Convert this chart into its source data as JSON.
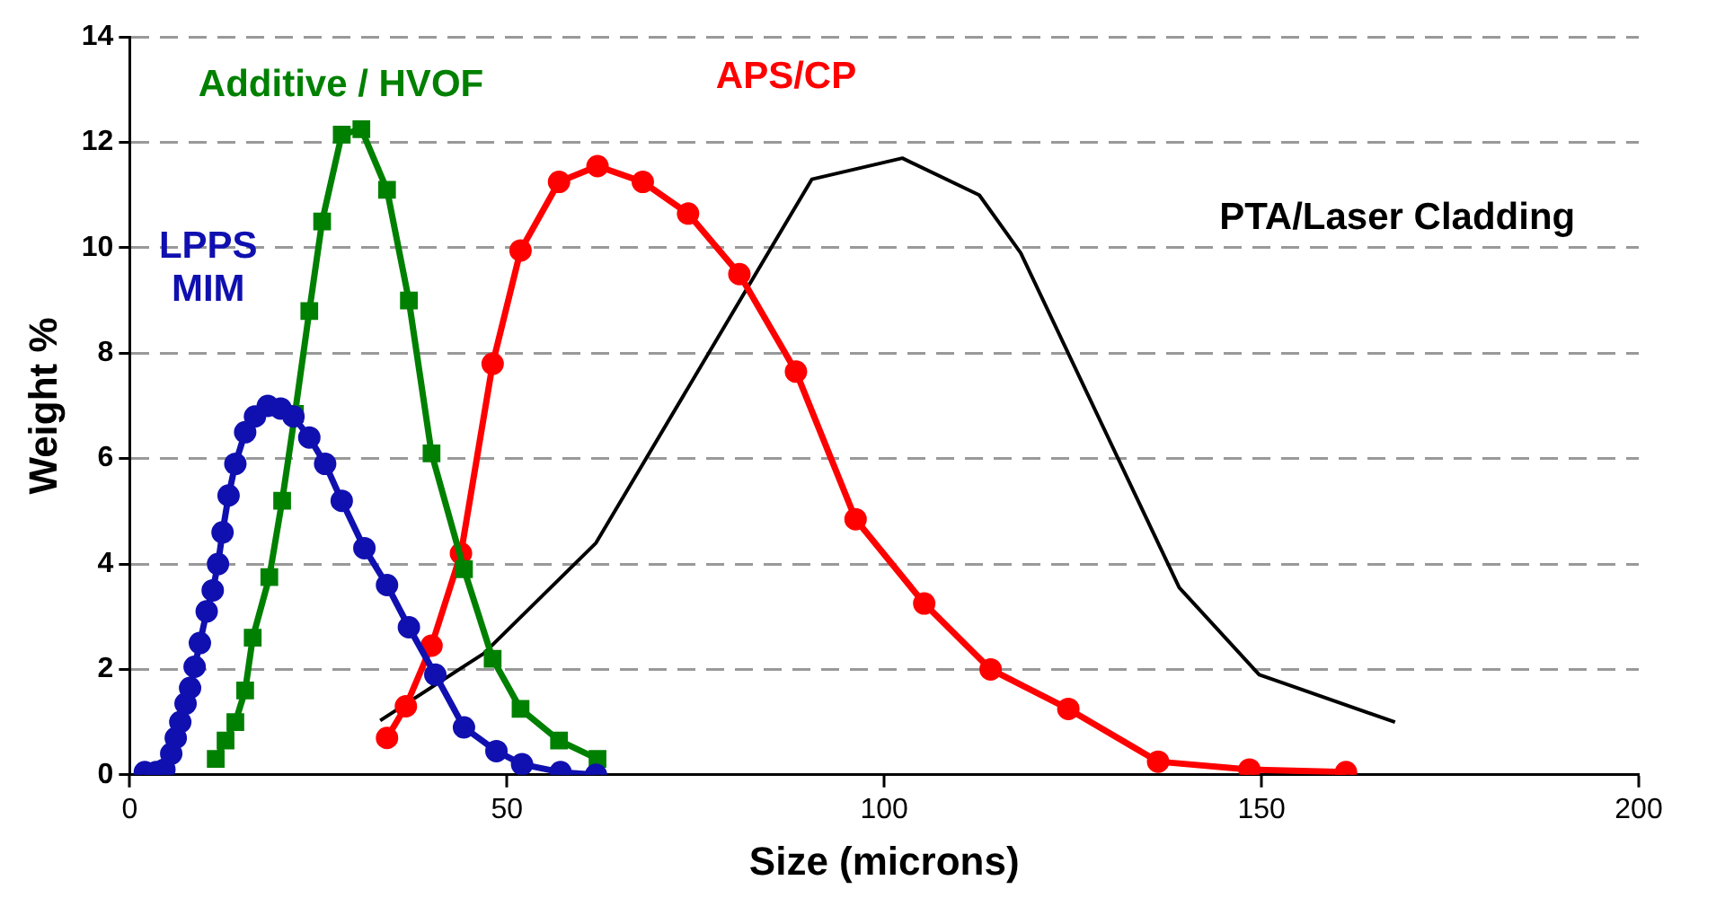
{
  "chart_data": {
    "type": "line",
    "xlabel": "Size (microns)",
    "ylabel": "Weight %",
    "xlim": [
      0,
      200
    ],
    "xticks": [
      0,
      50,
      100,
      150,
      200
    ],
    "ylim": [
      0,
      14
    ],
    "yticks": [
      0,
      2,
      4,
      6,
      8,
      10,
      12,
      14
    ],
    "grid": "y",
    "legend": false,
    "x": [
      2.0,
      3.5,
      4.6,
      5.5,
      6.1,
      6.7,
      7.4,
      8.0,
      8.6,
      9.3,
      10.2,
      11.0,
      11.7,
      12.3,
      13.1,
      14.0,
      15.3,
      16.6,
      18.3,
      20.0,
      21.7,
      23.8,
      25.9,
      28.1,
      31.1,
      34.1,
      37.0,
      40.5,
      44.3,
      48.6,
      52.0,
      57.1,
      61.8
    ],
    "series": [
      {
        "name": "LPPS MIM",
        "color": "#1010b0",
        "marker": "circle",
        "values": [
          0.05,
          0.05,
          0.1,
          0.4,
          0.7,
          1.0,
          1.35,
          1.65,
          2.05,
          2.5,
          3.1,
          3.5,
          4.0,
          4.6,
          5.3,
          5.9,
          6.5,
          6.8,
          7.0,
          6.95,
          6.8,
          6.4,
          5.9,
          5.2,
          4.3,
          3.6,
          2.8,
          1.9,
          0.9,
          0.45,
          0.2,
          0.05,
          0.0
        ]
      },
      {
        "name": "Additive / HVOF",
        "color": "#008000",
        "marker": "square",
        "x": [
          11.4,
          12.7,
          14.0,
          15.3,
          16.3,
          18.5,
          20.2,
          21.9,
          23.8,
          25.5,
          28.1,
          30.7,
          34.1,
          37.0,
          40.0,
          44.3,
          48.1,
          51.8,
          56.9,
          62.0
        ],
        "values": [
          0.3,
          0.65,
          1.0,
          1.6,
          2.6,
          3.75,
          5.2,
          6.85,
          8.8,
          10.5,
          12.15,
          12.25,
          11.1,
          9.0,
          6.1,
          3.9,
          2.2,
          1.25,
          0.65,
          0.3
        ]
      },
      {
        "name": "APS/CP",
        "color": "#ff0000",
        "marker": "circle",
        "x": [
          34.1,
          36.6,
          40.0,
          43.9,
          48.1,
          51.8,
          56.9,
          62.0,
          68.0,
          74.0,
          80.8,
          88.3,
          96.2,
          105.3,
          114.1,
          124.4,
          136.3,
          148.4,
          161.2
        ],
        "values": [
          0.7,
          1.3,
          2.45,
          4.2,
          7.8,
          9.95,
          11.25,
          11.55,
          11.25,
          10.65,
          9.5,
          7.65,
          4.85,
          3.25,
          2.0,
          1.25,
          0.25,
          0.1,
          0.05
        ]
      },
      {
        "name": "PTA/Laser Cladding",
        "color": "#000000",
        "marker": "none",
        "x": [
          33.2,
          46.9,
          61.8,
          90.4,
          102.4,
          112.6,
          118.1,
          139.1,
          149.7,
          167.7
        ],
        "values": [
          1.03,
          2.3,
          4.4,
          11.3,
          11.7,
          11.0,
          9.9,
          3.55,
          1.9,
          1.0
        ]
      }
    ]
  }
}
